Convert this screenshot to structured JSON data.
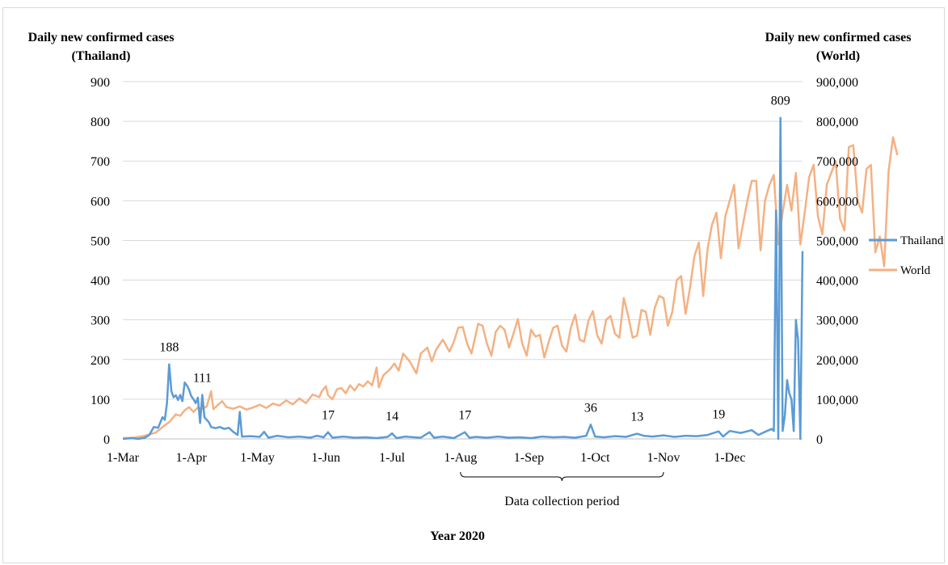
{
  "chart_data": {
    "type": "line",
    "title": "",
    "xlabel": "Year 2020",
    "ylabel_left": "Daily new confirmed cases",
    "ylabel_left_sub": "(Thailand)",
    "ylabel_right": "Daily new confirmed cases",
    "ylabel_right_sub": "(World)",
    "ylim_left": [
      0,
      900
    ],
    "ylim_right": [
      0,
      900000
    ],
    "yticks_left": [
      "0",
      "100",
      "200",
      "300",
      "400",
      "500",
      "600",
      "700",
      "800",
      "900"
    ],
    "yticks_right": [
      "0",
      "100,000",
      "200,000",
      "300,000",
      "400,000",
      "500,000",
      "600,000",
      "700,000",
      "800,000",
      "900,000"
    ],
    "xticks": [
      "1-Mar",
      "1-Apr",
      "1-May",
      "1-Jun",
      "1-Jul",
      "1-Aug",
      "1-Sep",
      "1-Oct",
      "1-Nov",
      "1-Dec"
    ],
    "xrange_days": [
      0,
      305
    ],
    "grid": "horizontal",
    "legend_position": "right",
    "colors": {
      "thailand": "#5b9bd5",
      "world": "#f4b183",
      "grid": "#d9d9d9"
    },
    "series": [
      {
        "name": "Thailand",
        "axis": "left",
        "points": [
          [
            0,
            0
          ],
          [
            4,
            2
          ],
          [
            7,
            0
          ],
          [
            10,
            3
          ],
          [
            12,
            10
          ],
          [
            14,
            30
          ],
          [
            16,
            28
          ],
          [
            18,
            55
          ],
          [
            19,
            48
          ],
          [
            20,
            90
          ],
          [
            21,
            188
          ],
          [
            22,
            120
          ],
          [
            23,
            105
          ],
          [
            24,
            110
          ],
          [
            25,
            98
          ],
          [
            26,
            111
          ],
          [
            27,
            95
          ],
          [
            28,
            142
          ],
          [
            29,
            135
          ],
          [
            30,
            124
          ],
          [
            31,
            108
          ],
          [
            32,
            100
          ],
          [
            33,
            90
          ],
          [
            34,
            104
          ],
          [
            35,
            40
          ],
          [
            36,
            111
          ],
          [
            37,
            54
          ],
          [
            38,
            48
          ],
          [
            39,
            42
          ],
          [
            40,
            30
          ],
          [
            42,
            27
          ],
          [
            44,
            30
          ],
          [
            46,
            25
          ],
          [
            48,
            28
          ],
          [
            50,
            18
          ],
          [
            52,
            10
          ],
          [
            53,
            68
          ],
          [
            54,
            6
          ],
          [
            58,
            7
          ],
          [
            62,
            5
          ],
          [
            64,
            18
          ],
          [
            66,
            3
          ],
          [
            70,
            8
          ],
          [
            75,
            4
          ],
          [
            80,
            6
          ],
          [
            85,
            3
          ],
          [
            88,
            8
          ],
          [
            91,
            4
          ],
          [
            93,
            17
          ],
          [
            95,
            3
          ],
          [
            100,
            6
          ],
          [
            105,
            3
          ],
          [
            110,
            4
          ],
          [
            115,
            2
          ],
          [
            120,
            5
          ],
          [
            122,
            14
          ],
          [
            124,
            2
          ],
          [
            128,
            6
          ],
          [
            132,
            4
          ],
          [
            135,
            3
          ],
          [
            139,
            17
          ],
          [
            141,
            3
          ],
          [
            145,
            6
          ],
          [
            150,
            2
          ],
          [
            155,
            17
          ],
          [
            157,
            3
          ],
          [
            160,
            5
          ],
          [
            165,
            3
          ],
          [
            170,
            6
          ],
          [
            175,
            3
          ],
          [
            180,
            4
          ],
          [
            185,
            2
          ],
          [
            190,
            6
          ],
          [
            195,
            4
          ],
          [
            200,
            5
          ],
          [
            205,
            3
          ],
          [
            210,
            8
          ],
          [
            212,
            36
          ],
          [
            214,
            6
          ],
          [
            218,
            4
          ],
          [
            223,
            7
          ],
          [
            228,
            5
          ],
          [
            233,
            13
          ],
          [
            236,
            8
          ],
          [
            240,
            6
          ],
          [
            245,
            9
          ],
          [
            250,
            5
          ],
          [
            255,
            8
          ],
          [
            260,
            7
          ],
          [
            265,
            10
          ],
          [
            270,
            19
          ],
          [
            272,
            6
          ],
          [
            275,
            20
          ],
          [
            280,
            15
          ],
          [
            285,
            22
          ],
          [
            288,
            10
          ],
          [
            291,
            18
          ],
          [
            294,
            25
          ],
          [
            295,
            20
          ],
          [
            296,
            576
          ],
          [
            297,
            0
          ],
          [
            298,
            809
          ],
          [
            299,
            20
          ],
          [
            300,
            60
          ],
          [
            301,
            148
          ],
          [
            302,
            115
          ],
          [
            303,
            100
          ],
          [
            304,
            20
          ],
          [
            305,
            300
          ],
          [
            306,
            250
          ],
          [
            307,
            0
          ],
          [
            308,
            473
          ]
        ]
      },
      {
        "name": "World",
        "axis": "right",
        "points": [
          [
            0,
            2000
          ],
          [
            5,
            3000
          ],
          [
            10,
            8000
          ],
          [
            15,
            16000
          ],
          [
            18,
            30000
          ],
          [
            21,
            42000
          ],
          [
            24,
            62000
          ],
          [
            26,
            58000
          ],
          [
            28,
            72000
          ],
          [
            30,
            80000
          ],
          [
            32,
            68000
          ],
          [
            34,
            79000
          ],
          [
            36,
            75000
          ],
          [
            38,
            82000
          ],
          [
            40,
            120000
          ],
          [
            41,
            75000
          ],
          [
            43,
            85000
          ],
          [
            45,
            95000
          ],
          [
            47,
            80000
          ],
          [
            50,
            76000
          ],
          [
            53,
            82000
          ],
          [
            56,
            74000
          ],
          [
            59,
            79000
          ],
          [
            62,
            86000
          ],
          [
            65,
            78000
          ],
          [
            68,
            89000
          ],
          [
            71,
            84000
          ],
          [
            74,
            97000
          ],
          [
            77,
            87000
          ],
          [
            80,
            102000
          ],
          [
            83,
            90000
          ],
          [
            86,
            112000
          ],
          [
            89,
            105000
          ],
          [
            90,
            118000
          ],
          [
            92,
            133000
          ],
          [
            93,
            110000
          ],
          [
            95,
            100000
          ],
          [
            97,
            125000
          ],
          [
            99,
            128000
          ],
          [
            101,
            115000
          ],
          [
            103,
            135000
          ],
          [
            105,
            122000
          ],
          [
            107,
            138000
          ],
          [
            109,
            132000
          ],
          [
            111,
            145000
          ],
          [
            113,
            135000
          ],
          [
            115,
            180000
          ],
          [
            116,
            130000
          ],
          [
            118,
            160000
          ],
          [
            121,
            175000
          ],
          [
            123,
            190000
          ],
          [
            125,
            172000
          ],
          [
            127,
            215000
          ],
          [
            130,
            195000
          ],
          [
            133,
            165000
          ],
          [
            135,
            215000
          ],
          [
            138,
            230000
          ],
          [
            140,
            195000
          ],
          [
            142,
            225000
          ],
          [
            145,
            250000
          ],
          [
            148,
            220000
          ],
          [
            150,
            245000
          ],
          [
            152,
            280000
          ],
          [
            154,
            282000
          ],
          [
            156,
            240000
          ],
          [
            158,
            215000
          ],
          [
            161,
            290000
          ],
          [
            163,
            285000
          ],
          [
            165,
            240000
          ],
          [
            167,
            210000
          ],
          [
            169,
            270000
          ],
          [
            171,
            285000
          ],
          [
            173,
            275000
          ],
          [
            175,
            230000
          ],
          [
            177,
            265000
          ],
          [
            179,
            302000
          ],
          [
            181,
            240000
          ],
          [
            183,
            210000
          ],
          [
            185,
            275000
          ],
          [
            187,
            258000
          ],
          [
            189,
            262000
          ],
          [
            191,
            205000
          ],
          [
            193,
            245000
          ],
          [
            195,
            280000
          ],
          [
            197,
            285000
          ],
          [
            199,
            235000
          ],
          [
            201,
            220000
          ],
          [
            203,
            280000
          ],
          [
            205,
            313000
          ],
          [
            207,
            250000
          ],
          [
            209,
            245000
          ],
          [
            211,
            298000
          ],
          [
            213,
            322000
          ],
          [
            215,
            260000
          ],
          [
            217,
            240000
          ],
          [
            219,
            300000
          ],
          [
            221,
            310000
          ],
          [
            223,
            265000
          ],
          [
            225,
            255000
          ],
          [
            227,
            355000
          ],
          [
            229,
            310000
          ],
          [
            231,
            255000
          ],
          [
            233,
            260000
          ],
          [
            235,
            325000
          ],
          [
            237,
            320000
          ],
          [
            239,
            262000
          ],
          [
            241,
            330000
          ],
          [
            243,
            360000
          ],
          [
            245,
            355000
          ],
          [
            247,
            285000
          ],
          [
            249,
            320000
          ],
          [
            251,
            400000
          ],
          [
            253,
            410000
          ],
          [
            255,
            315000
          ],
          [
            257,
            380000
          ],
          [
            259,
            460000
          ],
          [
            261,
            495000
          ],
          [
            263,
            360000
          ],
          [
            265,
            480000
          ],
          [
            267,
            540000
          ],
          [
            269,
            570000
          ],
          [
            271,
            455000
          ],
          [
            273,
            560000
          ],
          [
            275,
            600000
          ],
          [
            277,
            640000
          ],
          [
            279,
            480000
          ],
          [
            281,
            540000
          ],
          [
            283,
            600000
          ],
          [
            285,
            650000
          ],
          [
            287,
            650000
          ],
          [
            289,
            475000
          ],
          [
            291,
            600000
          ],
          [
            293,
            640000
          ],
          [
            295,
            665000
          ],
          [
            297,
            490000
          ],
          [
            299,
            570000
          ],
          [
            301,
            640000
          ],
          [
            303,
            575000
          ],
          [
            305,
            670000
          ],
          [
            307,
            490000
          ],
          [
            309,
            570000
          ],
          [
            311,
            660000
          ],
          [
            313,
            690000
          ],
          [
            315,
            560000
          ],
          [
            317,
            515000
          ],
          [
            319,
            640000
          ],
          [
            321,
            670000
          ],
          [
            323,
            700000
          ],
          [
            325,
            555000
          ],
          [
            327,
            525000
          ],
          [
            329,
            735000
          ],
          [
            331,
            740000
          ],
          [
            333,
            600000
          ],
          [
            335,
            570000
          ],
          [
            337,
            680000
          ],
          [
            339,
            690000
          ],
          [
            341,
            470000
          ],
          [
            343,
            510000
          ],
          [
            345,
            435000
          ],
          [
            347,
            675000
          ],
          [
            349,
            760000
          ],
          [
            351,
            715000
          ]
        ]
      }
    ],
    "annotations": [
      {
        "label": "188",
        "series": "Thailand",
        "x": 21,
        "y": 188
      },
      {
        "label": "111",
        "series": "Thailand",
        "x": 36,
        "y": 111
      },
      {
        "label": "17",
        "series": "Thailand",
        "x": 93,
        "y": 17
      },
      {
        "label": "14",
        "series": "Thailand",
        "x": 122,
        "y": 14
      },
      {
        "label": "17",
        "series": "Thailand",
        "x": 155,
        "y": 17
      },
      {
        "label": "36",
        "series": "Thailand",
        "x": 212,
        "y": 36
      },
      {
        "label": "13",
        "series": "Thailand",
        "x": 233,
        "y": 13
      },
      {
        "label": "19",
        "series": "Thailand",
        "x": 270,
        "y": 19
      },
      {
        "label": "809",
        "series": "Thailand",
        "x": 298,
        "y": 809
      }
    ],
    "bracket": {
      "label": "Data collection period",
      "from": "1-Aug",
      "to": "1-Nov"
    }
  }
}
